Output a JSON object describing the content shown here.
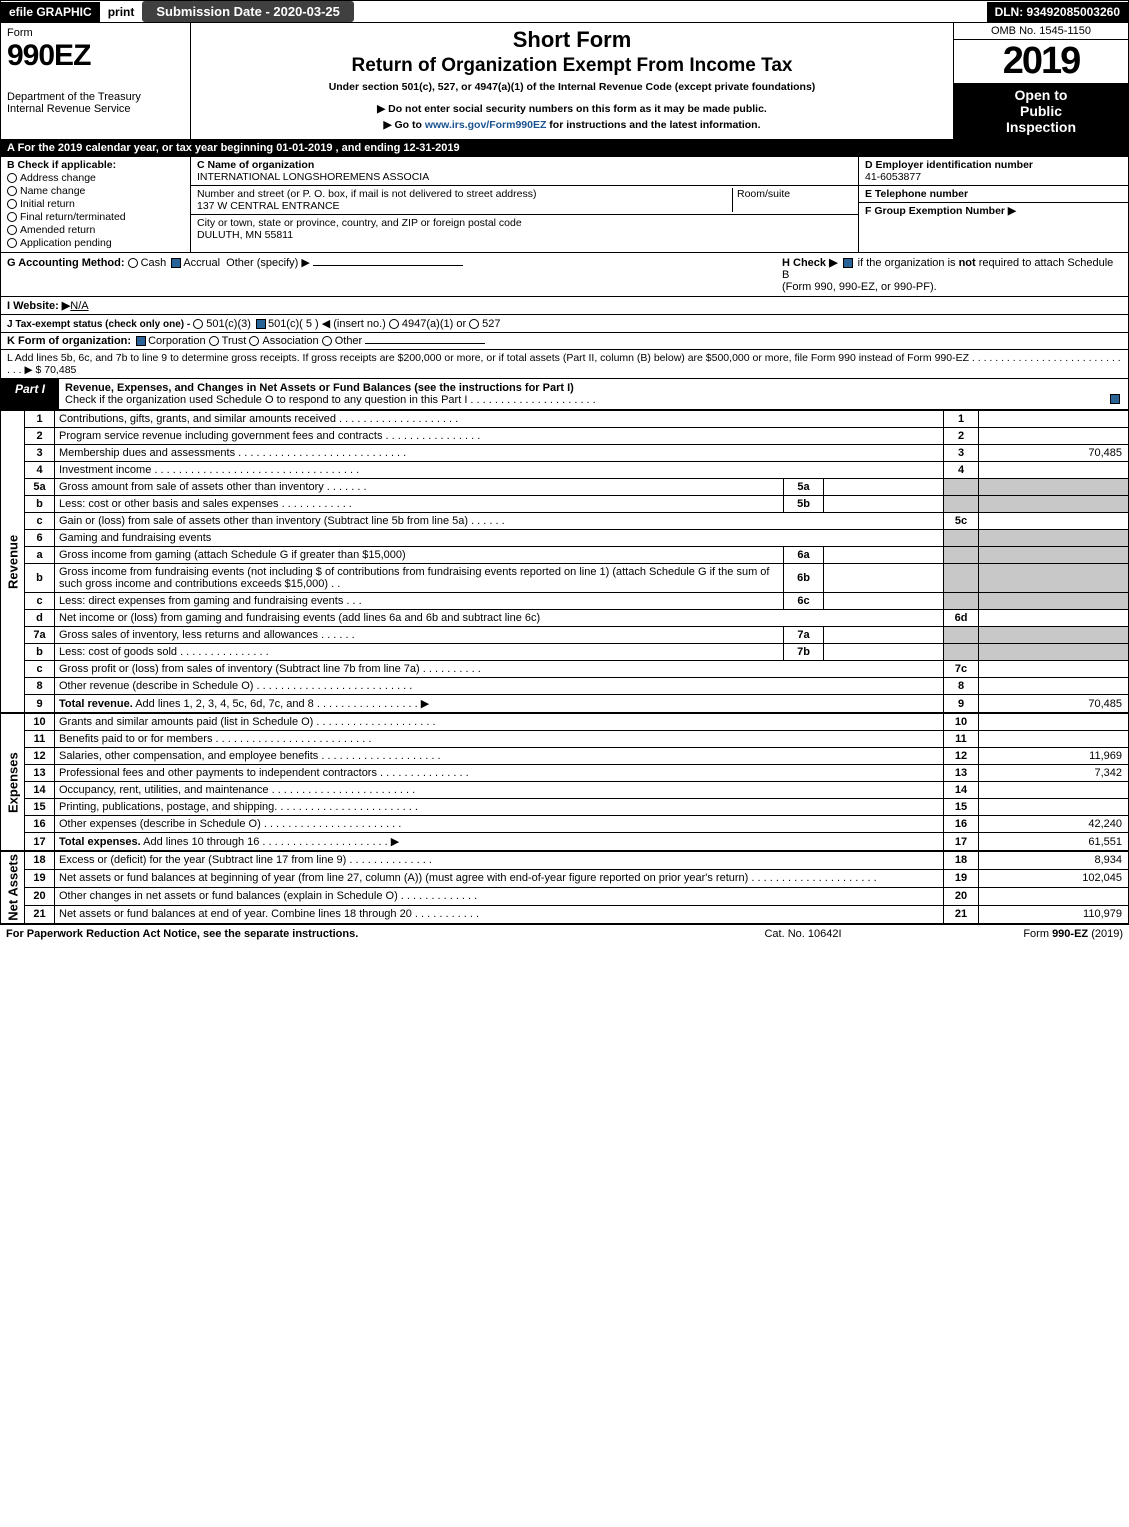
{
  "topbar": {
    "efile": "efile GRAPHIC",
    "print": "print",
    "subdate_label": "Submission Date - 2020-03-25",
    "dln": "DLN: 93492085003260"
  },
  "header": {
    "form_word": "Form",
    "form_no": "990EZ",
    "short_form": "Short Form",
    "title": "Return of Organization Exempt From Income Tax",
    "under": "Under section 501(c), 527, or 4947(a)(1) of the Internal Revenue Code (except private foundations)",
    "nossl": "▶ Do not enter social security numbers on this form as it may be made public.",
    "goto": "▶ Go to www.irs.gov/Form990EZ for instructions and the latest information.",
    "omb": "OMB No. 1545-1150",
    "year": "2019",
    "open1": "Open to",
    "open2": "Public",
    "open3": "Inspection",
    "dept1": "Department of the Treasury",
    "dept2": "Internal Revenue Service"
  },
  "calrow": "A  For the 2019 calendar year, or tax year beginning 01-01-2019 , and ending 12-31-2019",
  "B": {
    "title": "B  Check if applicable:",
    "items": [
      "Address change",
      "Name change",
      "Initial return",
      "Final return/terminated",
      "Amended return",
      "Application pending"
    ]
  },
  "C": {
    "name_label": "C Name of organization",
    "name": "INTERNATIONAL LONGSHOREMENS ASSOCIA",
    "addr_label": "Number and street (or P. O. box, if mail is not delivered to street address)",
    "room_label": "Room/suite",
    "addr": "137 W CENTRAL ENTRANCE",
    "city_label": "City or town, state or province, country, and ZIP or foreign postal code",
    "city": "DULUTH, MN  55811"
  },
  "D": {
    "ein_label": "D Employer identification number",
    "ein": "41-6053877",
    "tel_label": "E Telephone number",
    "grp_label": "F Group Exemption Number  ▶"
  },
  "G": {
    "label": "G Accounting Method:",
    "cash": "Cash",
    "accrual": "Accrual",
    "other": "Other (specify) ▶"
  },
  "H": {
    "text1": "H  Check ▶",
    "text2": "if the organization is not required to attach Schedule B",
    "text3": "(Form 990, 990-EZ, or 990-PF)."
  },
  "I": {
    "label": "I Website: ▶",
    "value": "N/A"
  },
  "J": {
    "label": "J Tax-exempt status (check only one) -",
    "o1": "501(c)(3)",
    "o2": "501(c)( 5 ) ◀ (insert no.)",
    "o3": "4947(a)(1) or",
    "o4": "527"
  },
  "K": {
    "label": "K Form of organization:",
    "o1": "Corporation",
    "o2": "Trust",
    "o3": "Association",
    "o4": "Other"
  },
  "L": {
    "text": "L Add lines 5b, 6c, and 7b to line 9 to determine gross receipts. If gross receipts are $200,000 or more, or if total assets (Part II, column (B) below) are $500,000 or more, file Form 990 instead of Form 990-EZ . . . . . . . . . . . . . . . . . . . . . . . . . . . . . ▶ $ 70,485"
  },
  "part1": {
    "label": "Part I",
    "title": "Revenue, Expenses, and Changes in Net Assets or Fund Balances (see the instructions for Part I)",
    "check": "Check if the organization used Schedule O to respond to any question in this Part I . . . . . . . . . . . . . . . . . . . . ."
  },
  "sidelabels": {
    "rev": "Revenue",
    "exp": "Expenses",
    "na": "Net Assets"
  },
  "lines": [
    {
      "n": "1",
      "d": "Contributions, gifts, grants, and similar amounts received . . . . . . . . . . . . . . . . . . . .",
      "ln": "1",
      "v": ""
    },
    {
      "n": "2",
      "d": "Program service revenue including government fees and contracts . . . . . . . . . . . . . . . .",
      "ln": "2",
      "v": ""
    },
    {
      "n": "3",
      "d": "Membership dues and assessments . . . . . . . . . . . . . . . . . . . . . . . . . . . .",
      "ln": "3",
      "v": "70,485"
    },
    {
      "n": "4",
      "d": "Investment income . . . . . . . . . . . . . . . . . . . . . . . . . . . . . . . . . .",
      "ln": "4",
      "v": ""
    },
    {
      "n": "5a",
      "d": "Gross amount from sale of assets other than inventory . . . . . . .",
      "mini": "5a",
      "miniv": "",
      "shade": true
    },
    {
      "n": "b",
      "d": "Less: cost or other basis and sales expenses . . . . . . . . . . . .",
      "mini": "5b",
      "miniv": "",
      "shade": true
    },
    {
      "n": "c",
      "d": "Gain or (loss) from sale of assets other than inventory (Subtract line 5b from line 5a) . . . . . .",
      "ln": "5c",
      "v": ""
    },
    {
      "n": "6",
      "d": "Gaming and fundraising events",
      "noln": true
    },
    {
      "n": "a",
      "d": "Gross income from gaming (attach Schedule G if greater than $15,000)",
      "mini": "6a",
      "miniv": "",
      "shade": true
    },
    {
      "n": "b",
      "d": "Gross income from fundraising events (not including $                           of contributions from fundraising events reported on line 1) (attach Schedule G if the sum of such gross income and contributions exceeds $15,000)    . .",
      "mini": "6b",
      "miniv": "",
      "shade": true
    },
    {
      "n": "c",
      "d": "Less: direct expenses from gaming and fundraising events     . . .",
      "mini": "6c",
      "miniv": "",
      "shade": true
    },
    {
      "n": "d",
      "d": "Net income or (loss) from gaming and fundraising events (add lines 6a and 6b and subtract line 6c)",
      "ln": "6d",
      "v": ""
    },
    {
      "n": "7a",
      "d": "Gross sales of inventory, less returns and allowances . . . . . .",
      "mini": "7a",
      "miniv": "",
      "shade": true
    },
    {
      "n": "b",
      "d": "Less: cost of goods sold          . . . . . . . . . . . . . . .",
      "mini": "7b",
      "miniv": "",
      "shade": true
    },
    {
      "n": "c",
      "d": "Gross profit or (loss) from sales of inventory (Subtract line 7b from line 7a) . . . . . . . . . .",
      "ln": "7c",
      "v": ""
    },
    {
      "n": "8",
      "d": "Other revenue (describe in Schedule O) . . . . . . . . . . . . . . . . . . . . . . . . . .",
      "ln": "8",
      "v": ""
    },
    {
      "n": "9",
      "d": "Total revenue. Add lines 1, 2, 3, 4, 5c, 6d, 7c, and 8  . . . . . . . . . . . . . . . . .   ▶",
      "ln": "9",
      "v": "70,485",
      "bold": true
    }
  ],
  "explines": [
    {
      "n": "10",
      "d": "Grants and similar amounts paid (list in Schedule O) . . . . . . . . . . . . . . . . . . . .",
      "ln": "10",
      "v": ""
    },
    {
      "n": "11",
      "d": "Benefits paid to or for members     . . . . . . . . . . . . . . . . . . . . . . . . . .",
      "ln": "11",
      "v": ""
    },
    {
      "n": "12",
      "d": "Salaries, other compensation, and employee benefits . . . . . . . . . . . . . . . . . . . .",
      "ln": "12",
      "v": "11,969"
    },
    {
      "n": "13",
      "d": "Professional fees and other payments to independent contractors . . . . . . . . . . . . . . .",
      "ln": "13",
      "v": "7,342"
    },
    {
      "n": "14",
      "d": "Occupancy, rent, utilities, and maintenance . . . . . . . . . . . . . . . . . . . . . . . .",
      "ln": "14",
      "v": ""
    },
    {
      "n": "15",
      "d": "Printing, publications, postage, and shipping. . . . . . . . . . . . . . . . . . . . . . . .",
      "ln": "15",
      "v": ""
    },
    {
      "n": "16",
      "d": "Other expenses (describe in Schedule O)     . . . . . . . . . . . . . . . . . . . . . . .",
      "ln": "16",
      "v": "42,240"
    },
    {
      "n": "17",
      "d": "Total expenses. Add lines 10 through 16     . . . . . . . . . . . . . . . . . . . . .   ▶",
      "ln": "17",
      "v": "61,551",
      "bold": true
    }
  ],
  "nalines": [
    {
      "n": "18",
      "d": "Excess or (deficit) for the year (Subtract line 17 from line 9)       . . . . . . . . . . . . . .",
      "ln": "18",
      "v": "8,934"
    },
    {
      "n": "19",
      "d": "Net assets or fund balances at beginning of year (from line 27, column (A)) (must agree with end-of-year figure reported on prior year's return) . . . . . . . . . . . . . . . . . . . . .",
      "ln": "19",
      "v": "102,045"
    },
    {
      "n": "20",
      "d": "Other changes in net assets or fund balances (explain in Schedule O) . . . . . . . . . . . . .",
      "ln": "20",
      "v": ""
    },
    {
      "n": "21",
      "d": "Net assets or fund balances at end of year. Combine lines 18 through 20 . . . . . . . . . . .",
      "ln": "21",
      "v": "110,979"
    }
  ],
  "footer": {
    "f1": "For Paperwork Reduction Act Notice, see the separate instructions.",
    "f2": "Cat. No. 10642I",
    "f3": "Form 990-EZ (2019)"
  },
  "colors": {
    "black": "#000000",
    "white": "#ffffff",
    "shade": "#c8c8c8",
    "link": "#1a5490",
    "checkblue": "#2a6496"
  }
}
